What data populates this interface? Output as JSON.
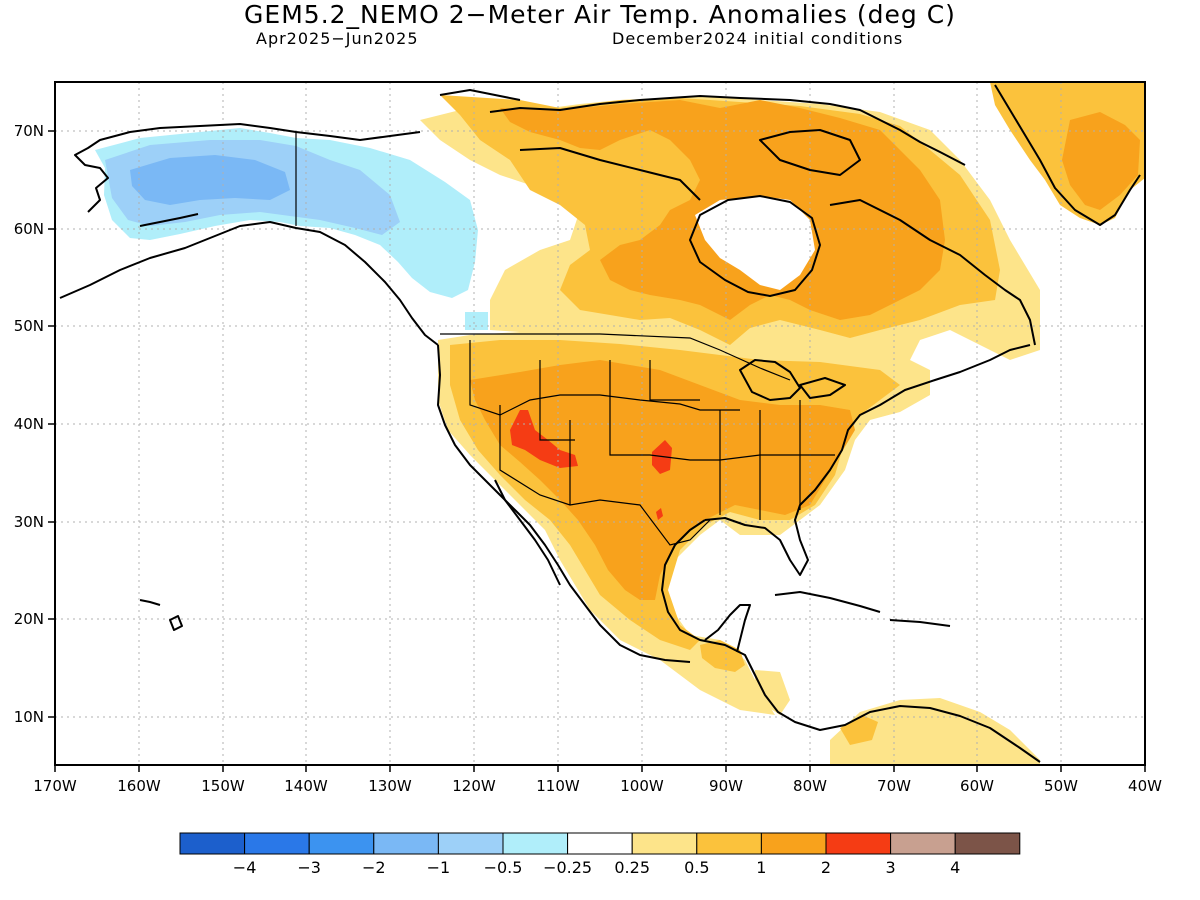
{
  "title": "GEM5.2_NEMO 2−Meter Air Temp. Anomalies (deg C)",
  "subtitle_left": "Apr2025−Jun2025",
  "subtitle_right": "December2024 initial conditions",
  "lon_labels": [
    "170W",
    "160W",
    "150W",
    "140W",
    "130W",
    "120W",
    "110W",
    "100W",
    "90W",
    "80W",
    "70W",
    "60W",
    "50W",
    "40W"
  ],
  "lat_labels": [
    "70N",
    "60N",
    "50N",
    "40N",
    "30N",
    "20N",
    "10N"
  ],
  "legend": {
    "colors": [
      "#1c5fcc",
      "#2a78e8",
      "#3c93f0",
      "#7ab8f5",
      "#9dd0f8",
      "#b0eefa",
      "#ffffff",
      "#fde48a",
      "#fbc23c",
      "#f8a21c",
      "#f53c14",
      "#c8a090",
      "#7c5448"
    ],
    "labels": [
      "−4",
      "−3",
      "−2",
      "−1",
      "−0.5",
      "−0.25",
      "0.25",
      "0.5",
      "1",
      "2",
      "3",
      "4"
    ]
  },
  "colors": {
    "ocean": "#ffffff",
    "coast": "#000000",
    "grid": "#b0b0b0"
  }
}
